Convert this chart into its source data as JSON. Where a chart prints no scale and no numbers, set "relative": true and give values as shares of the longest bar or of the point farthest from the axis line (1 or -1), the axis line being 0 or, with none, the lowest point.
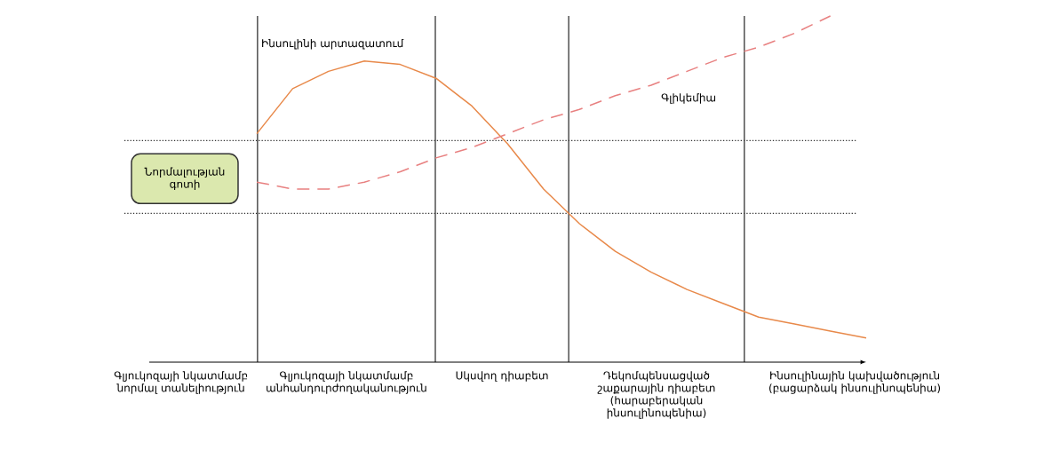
{
  "chart_data": {
    "type": "line",
    "relative": true,
    "categories": [
      null,
      null,
      null,
      null,
      null,
      null,
      null,
      null,
      null,
      null,
      null,
      null,
      null,
      null,
      null,
      null,
      null,
      null,
      null,
      null,
      null
    ],
    "series": [
      {
        "name": "Ինսուլինի արտազատում",
        "color": "#e8894a",
        "line_style": "solid",
        "values": [
          null,
          null,
          null,
          0.66,
          0.79,
          0.84,
          0.87,
          0.86,
          0.82,
          0.74,
          0.63,
          0.5,
          0.4,
          0.32,
          0.26,
          0.21,
          0.17,
          0.13,
          0.11,
          0.09,
          0.07
        ]
      },
      {
        "name": "Գլիկեմիա",
        "color": "#e88080",
        "line_style": "dashed",
        "values": [
          null,
          null,
          null,
          0.52,
          0.5,
          0.5,
          0.52,
          0.55,
          0.59,
          0.62,
          0.66,
          0.7,
          0.73,
          0.77,
          0.8,
          0.84,
          0.88,
          0.91,
          0.95,
          1.0,
          null
        ]
      }
    ],
    "ref_lines": [
      {
        "axis": "y",
        "value": 0.64,
        "line_style": "dotted"
      },
      {
        "axis": "y",
        "value": 0.43,
        "line_style": "dotted",
        "label": "Նորմալության գոտի"
      }
    ],
    "annotations": [
      "Գլյուկոզայի նկատմամբ նորմալ տանելիություն",
      "Գլյուկոզայի նկատմամբ անհանդուրժողականություն",
      "Սկսվող դիաբետ",
      "Դեկոմպենսացված շաքարային դիաբետ (հարաբերական ինսուլինոպենիա)",
      "Ինսուլինային կախվածություն (բացարձակ ինսուլինոպենիա)"
    ],
    "marker": "none"
  }
}
